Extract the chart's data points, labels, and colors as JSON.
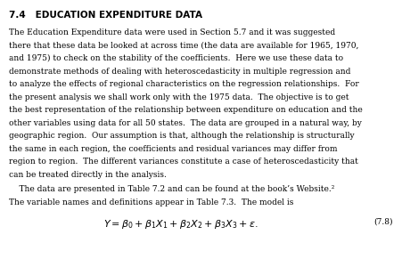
{
  "section_title": "7.4   EDUCATION EXPENDITURE DATA",
  "paragraph1_lines": [
    "The Education Expenditure data were used in Section 5.7 and it was suggested",
    "there that these data be looked at across time (the data are available for 1965, 1970,",
    "and 1975) to check on the stability of the coefficients.  Here we use these data to",
    "demonstrate methods of dealing with heteroscedasticity in multiple regression and",
    "to analyze the effects of regional characteristics on the regression relationships.  For",
    "the present analysis we shall work only with the 1975 data.  The objective is to get",
    "the best representation of the relationship between expenditure on education and the",
    "other variables using data for all 50 states.  The data are grouped in a natural way, by",
    "geographic region.  Our assumption is that, although the relationship is structurally",
    "the same in each region, the coefficients and residual variances may differ from",
    "region to region.  The different variances constitute a case of heteroscedasticity that",
    "can be treated directly in the analysis."
  ],
  "paragraph2_lines": [
    "    The data are presented in Table 7.2 and can be found at the book’s Website.²",
    "The variable names and definitions appear in Table 7.3.  The model is"
  ],
  "equation": "$Y = \\beta_0 + \\beta_1 X_1 + \\beta_2 X_2 + \\beta_3 X_3 + \\varepsilon.$",
  "equation_number": "(7.8)",
  "bg_color": "#ffffff",
  "text_color": "#000000",
  "title_fontsize": 7.5,
  "body_fontsize": 6.5,
  "eq_fontsize": 8.0
}
